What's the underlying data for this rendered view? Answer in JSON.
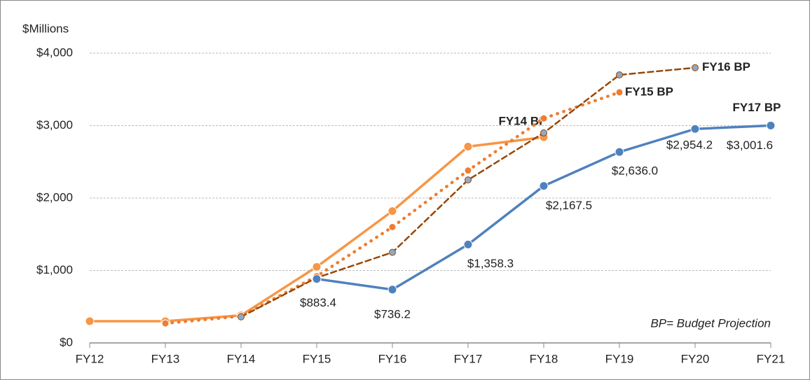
{
  "chart_data": {
    "type": "line",
    "y_label": "$Millions",
    "annotation": "BP= Budget Projection",
    "categories": [
      "FY12",
      "FY13",
      "FY14",
      "FY15",
      "FY16",
      "FY17",
      "FY18",
      "FY19",
      "FY20",
      "FY21"
    ],
    "ylim": [
      0,
      4000
    ],
    "yticks": [
      {
        "value": 0,
        "label": "$0"
      },
      {
        "value": 1000,
        "label": "$1,000"
      },
      {
        "value": 2000,
        "label": "$2,000"
      },
      {
        "value": 3000,
        "label": "$3,000"
      },
      {
        "value": 4000,
        "label": "$4,000"
      }
    ],
    "grid": true,
    "series": [
      {
        "name": "FY14 BP",
        "color": "#f79646",
        "style": "solid",
        "values": [
          300,
          300,
          380,
          1050,
          1820,
          2710,
          2840,
          null,
          null,
          null
        ]
      },
      {
        "name": "FY15 BP",
        "color": "#ed7d31",
        "style": "dotted",
        "values": [
          null,
          270,
          370,
          920,
          1600,
          2380,
          3100,
          3460,
          null,
          null
        ]
      },
      {
        "name": "FY16 BP",
        "color": "#984807",
        "style": "dashed",
        "values": [
          null,
          null,
          360,
          900,
          1250,
          2250,
          2900,
          3700,
          3800,
          null
        ]
      },
      {
        "name": "FY17 BP",
        "color": "#4f81bd",
        "style": "solid",
        "values": [
          null,
          null,
          null,
          883.4,
          736.2,
          1358.3,
          2167.5,
          2636.0,
          2954.2,
          3001.6
        ],
        "value_labels": [
          null,
          null,
          null,
          "$883.4",
          "$736.2",
          "$1,358.3",
          "$2,167.5",
          "$2,636.0",
          "$2,954.2",
          "$3,001.6"
        ]
      }
    ]
  }
}
